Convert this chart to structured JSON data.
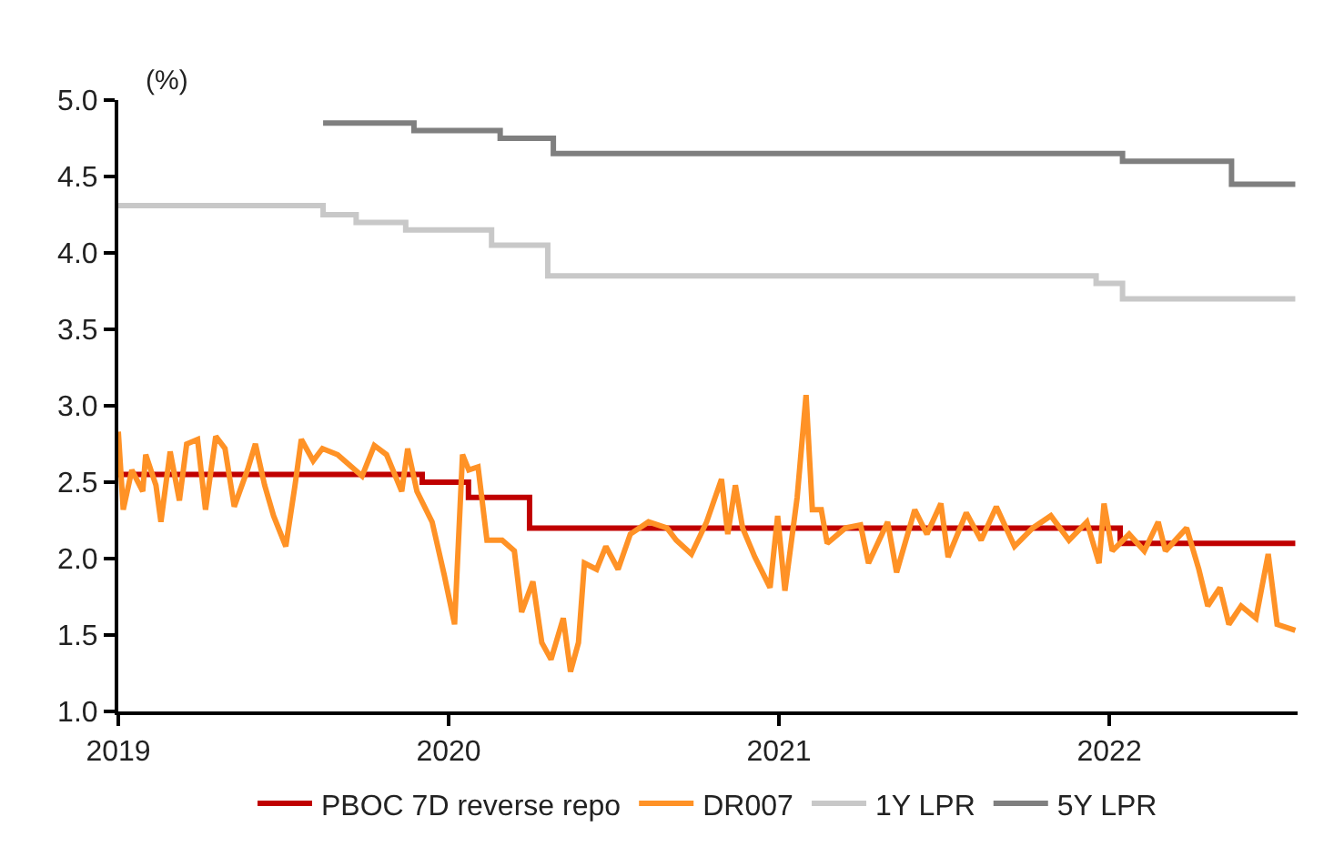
{
  "chart_data": {
    "type": "line",
    "ylabel": "(%)",
    "xlim": [
      2019,
      2022.57
    ],
    "xticks": [
      2019,
      2020,
      2021,
      2022
    ],
    "ylim": [
      1.0,
      5.0
    ],
    "yticks": [
      {
        "value": 1.0,
        "label": "1.0"
      },
      {
        "value": 1.5,
        "label": "1.5"
      },
      {
        "value": 2.0,
        "label": "2.0"
      },
      {
        "value": 2.5,
        "label": "2.5"
      },
      {
        "value": 3.0,
        "label": "3.0"
      },
      {
        "value": 3.5,
        "label": "3.5"
      },
      {
        "value": 4.0,
        "label": "4.0"
      },
      {
        "value": 4.5,
        "label": "4.5"
      },
      {
        "value": 5.0,
        "label": "5.0"
      }
    ],
    "grid": false,
    "legend": "bottom",
    "marker": "none",
    "line_style": "solid",
    "series": [
      {
        "name": "PBOC 7D reverse repo",
        "type": "step",
        "color": "#c00000",
        "x": [
          2019.0,
          2019.92,
          2020.06,
          2020.245,
          2022.033,
          2022.563
        ],
        "values": [
          2.55,
          2.5,
          2.4,
          2.2,
          2.1,
          2.1
        ]
      },
      {
        "name": "DR007",
        "color": "#ff9226",
        "x": [
          2019.0,
          2019.015,
          2019.041,
          2019.074,
          2019.083,
          2019.114,
          2019.129,
          2019.157,
          2019.185,
          2019.207,
          2019.24,
          2019.264,
          2019.295,
          2019.323,
          2019.351,
          2019.391,
          2019.415,
          2019.443,
          2019.47,
          2019.507,
          2019.535,
          2019.554,
          2019.59,
          2019.618,
          2019.664,
          2019.738,
          2019.775,
          2019.812,
          2019.858,
          2019.876,
          2019.904,
          2019.95,
          2019.987,
          2020.018,
          2020.042,
          2020.061,
          2020.089,
          2020.116,
          2020.162,
          2020.199,
          2020.221,
          2020.255,
          2020.282,
          2020.31,
          2020.347,
          2020.369,
          2020.393,
          2020.411,
          2020.448,
          2020.476,
          2020.513,
          2020.55,
          2020.605,
          2020.661,
          2020.689,
          2020.735,
          2020.781,
          2020.826,
          2020.845,
          2020.868,
          2020.89,
          2020.927,
          2020.973,
          2020.996,
          2021.018,
          2021.055,
          2021.082,
          2021.101,
          2021.128,
          2021.146,
          2021.201,
          2021.247,
          2021.271,
          2021.329,
          2021.356,
          2021.411,
          2021.448,
          2021.49,
          2021.512,
          2021.567,
          2021.612,
          2021.658,
          2021.713,
          2021.768,
          2021.823,
          2021.878,
          2021.932,
          2021.969,
          2021.984,
          2022.009,
          2022.06,
          2022.106,
          2022.148,
          2022.17,
          2022.234,
          2022.271,
          2022.298,
          2022.335,
          2022.362,
          2022.399,
          2022.444,
          2022.481,
          2022.508,
          2022.563
        ],
        "values": [
          2.83,
          2.32,
          2.58,
          2.44,
          2.68,
          2.48,
          2.24,
          2.7,
          2.38,
          2.75,
          2.78,
          2.32,
          2.8,
          2.72,
          2.34,
          2.58,
          2.75,
          2.48,
          2.28,
          2.08,
          2.48,
          2.78,
          2.64,
          2.72,
          2.68,
          2.54,
          2.74,
          2.68,
          2.44,
          2.72,
          2.44,
          2.24,
          1.89,
          1.57,
          2.68,
          2.58,
          2.6,
          2.12,
          2.12,
          2.05,
          1.65,
          1.85,
          1.45,
          1.34,
          1.61,
          1.26,
          1.45,
          1.97,
          1.93,
          2.08,
          1.93,
          2.16,
          2.24,
          2.2,
          2.12,
          2.03,
          2.24,
          2.52,
          2.16,
          2.48,
          2.2,
          2.01,
          1.81,
          2.28,
          1.79,
          2.4,
          3.07,
          2.32,
          2.32,
          2.1,
          2.2,
          2.22,
          1.97,
          2.24,
          1.91,
          2.32,
          2.16,
          2.36,
          2.01,
          2.3,
          2.12,
          2.34,
          2.08,
          2.2,
          2.28,
          2.12,
          2.24,
          1.97,
          2.36,
          2.05,
          2.16,
          2.05,
          2.24,
          2.05,
          2.2,
          1.93,
          1.69,
          1.81,
          1.57,
          1.69,
          1.61,
          2.03,
          1.57,
          1.53
        ]
      },
      {
        "name": "1Y LPR",
        "type": "step",
        "color": "#c8c8c8",
        "x": [
          2019.0,
          2019.62,
          2019.72,
          2019.87,
          2020.13,
          2020.3,
          2021.96,
          2022.04,
          2022.563
        ],
        "values": [
          4.31,
          4.25,
          4.2,
          4.15,
          4.05,
          3.85,
          3.8,
          3.7,
          3.7
        ]
      },
      {
        "name": "5Y LPR",
        "type": "step",
        "color": "#7f7f7f",
        "x": [
          2019.62,
          2019.895,
          2020.156,
          2020.317,
          2022.04,
          2022.37,
          2022.563
        ],
        "values": [
          4.85,
          4.8,
          4.75,
          4.65,
          4.6,
          4.45,
          4.45
        ]
      }
    ]
  }
}
